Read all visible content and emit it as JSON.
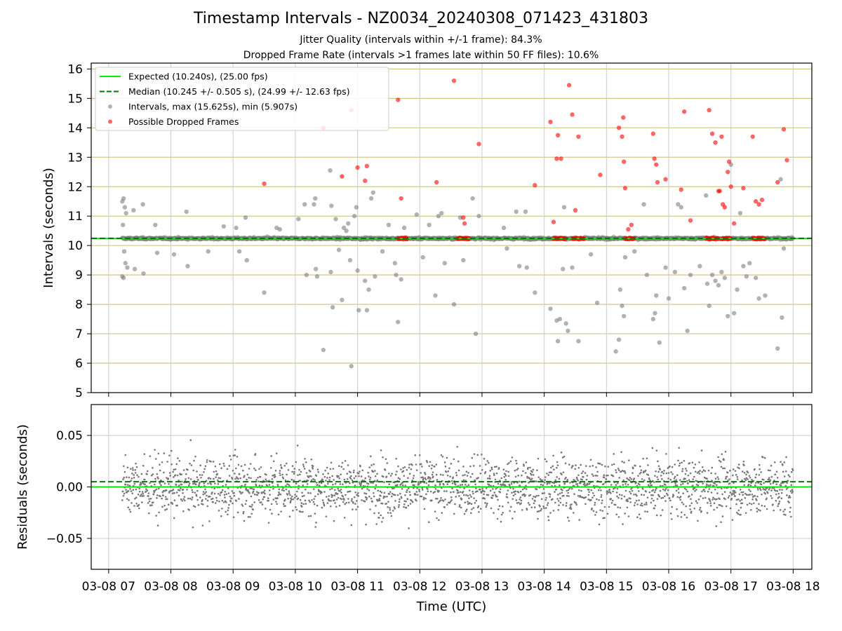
{
  "title": "Timestamp Intervals - NZ0034_20240308_071423_431803",
  "subtitle_lines": [
    "Jitter Quality (intervals within +/-1 frame): 84.3%",
    "Dropped Frame Rate (intervals >1 frames late within 50 FF files): 10.6%"
  ],
  "chart_data": [
    {
      "type": "scatter",
      "panel": "intervals",
      "ylabel": "Intervals (seconds)",
      "ylim": [
        5,
        16.2
      ],
      "yticks": [
        "5",
        "6",
        "7",
        "8",
        "9",
        "10",
        "11",
        "12",
        "13",
        "14",
        "15",
        "16"
      ],
      "grid": true,
      "legend_position": "top-left",
      "reference_lines": [
        {
          "name": "Expected (10.240s), (25.00 fps)",
          "y": 10.24,
          "color": "#00ee00",
          "style": "solid"
        },
        {
          "name": "Median (10.245 +/- 0.505 s), (24.99 +/- 12.63 fps)",
          "y": 10.245,
          "color": "#007700",
          "style": "dashed"
        }
      ],
      "series": [
        {
          "name": "Intervals, max (15.625s), min (5.907s)",
          "color": "#808080"
        },
        {
          "name": "Possible Dropped Frames",
          "color": "#ff0000"
        }
      ],
      "max_interval": 15.625,
      "min_interval": 5.907,
      "outliers": [
        {
          "t": 7.22,
          "y": 11.5
        },
        {
          "t": 7.24,
          "y": 11.6
        },
        {
          "t": 7.26,
          "y": 11.3
        },
        {
          "t": 7.28,
          "y": 11.1
        },
        {
          "t": 7.23,
          "y": 10.7
        },
        {
          "t": 7.25,
          "y": 9.8
        },
        {
          "t": 7.27,
          "y": 9.4
        },
        {
          "t": 7.24,
          "y": 8.9
        },
        {
          "t": 7.22,
          "y": 8.95
        },
        {
          "t": 7.3,
          "y": 9.25
        },
        {
          "t": 7.4,
          "y": 11.2
        },
        {
          "t": 7.42,
          "y": 9.2
        },
        {
          "t": 7.55,
          "y": 11.4
        },
        {
          "t": 7.56,
          "y": 9.05
        },
        {
          "t": 7.75,
          "y": 10.7
        },
        {
          "t": 7.78,
          "y": 9.75
        },
        {
          "t": 8.05,
          "y": 9.7
        },
        {
          "t": 8.25,
          "y": 11.15
        },
        {
          "t": 8.27,
          "y": 9.3
        },
        {
          "t": 8.6,
          "y": 9.8
        },
        {
          "t": 8.85,
          "y": 10.65
        },
        {
          "t": 9.05,
          "y": 10.6
        },
        {
          "t": 9.1,
          "y": 9.8
        },
        {
          "t": 9.2,
          "y": 10.95
        },
        {
          "t": 9.22,
          "y": 9.5
        },
        {
          "t": 9.5,
          "y": 8.4
        },
        {
          "t": 9.55,
          "y": 10.3
        },
        {
          "t": 9.7,
          "y": 10.6
        },
        {
          "t": 9.75,
          "y": 10.55
        },
        {
          "t": 10.05,
          "y": 10.9
        },
        {
          "t": 10.15,
          "y": 11.4
        },
        {
          "t": 10.18,
          "y": 9.0
        },
        {
          "t": 10.3,
          "y": 11.4
        },
        {
          "t": 10.32,
          "y": 11.6
        },
        {
          "t": 10.33,
          "y": 9.2
        },
        {
          "t": 10.35,
          "y": 8.95
        },
        {
          "t": 10.45,
          "y": 6.45
        },
        {
          "t": 10.56,
          "y": 12.55
        },
        {
          "t": 10.58,
          "y": 11.35
        },
        {
          "t": 10.57,
          "y": 9.1
        },
        {
          "t": 10.6,
          "y": 7.9
        },
        {
          "t": 10.65,
          "y": 10.9
        },
        {
          "t": 10.7,
          "y": 9.85
        },
        {
          "t": 10.75,
          "y": 8.15
        },
        {
          "t": 10.78,
          "y": 10.6
        },
        {
          "t": 10.82,
          "y": 10.5
        },
        {
          "t": 10.85,
          "y": 10.75
        },
        {
          "t": 10.88,
          "y": 9.5
        },
        {
          "t": 10.9,
          "y": 5.9
        },
        {
          "t": 10.95,
          "y": 11.0
        },
        {
          "t": 10.98,
          "y": 11.3
        },
        {
          "t": 11.0,
          "y": 9.15
        },
        {
          "t": 11.02,
          "y": 7.8
        },
        {
          "t": 11.05,
          "y": 10.2
        },
        {
          "t": 11.12,
          "y": 8.8
        },
        {
          "t": 11.15,
          "y": 7.8
        },
        {
          "t": 11.18,
          "y": 8.5
        },
        {
          "t": 11.22,
          "y": 11.6
        },
        {
          "t": 11.25,
          "y": 11.8
        },
        {
          "t": 11.28,
          "y": 8.95
        },
        {
          "t": 11.4,
          "y": 9.8
        },
        {
          "t": 11.5,
          "y": 10.7
        },
        {
          "t": 11.6,
          "y": 9.4
        },
        {
          "t": 11.62,
          "y": 9.0
        },
        {
          "t": 11.65,
          "y": 7.4
        },
        {
          "t": 11.7,
          "y": 8.85
        },
        {
          "t": 11.75,
          "y": 10.6
        },
        {
          "t": 11.95,
          "y": 11.05
        },
        {
          "t": 12.05,
          "y": 9.6
        },
        {
          "t": 12.15,
          "y": 10.7
        },
        {
          "t": 12.25,
          "y": 8.3
        },
        {
          "t": 12.3,
          "y": 11.0
        },
        {
          "t": 12.35,
          "y": 11.1
        },
        {
          "t": 12.4,
          "y": 9.4
        },
        {
          "t": 12.55,
          "y": 8.0
        },
        {
          "t": 12.65,
          "y": 10.95
        },
        {
          "t": 12.7,
          "y": 9.5
        },
        {
          "t": 12.85,
          "y": 11.6
        },
        {
          "t": 12.9,
          "y": 7.0
        },
        {
          "t": 12.95,
          "y": 11.0
        },
        {
          "t": 13.35,
          "y": 10.6
        },
        {
          "t": 13.4,
          "y": 9.9
        },
        {
          "t": 13.55,
          "y": 11.15
        },
        {
          "t": 13.6,
          "y": 9.3
        },
        {
          "t": 13.7,
          "y": 11.15
        },
        {
          "t": 13.72,
          "y": 9.25
        },
        {
          "t": 13.85,
          "y": 8.4
        },
        {
          "t": 14.1,
          "y": 7.85
        },
        {
          "t": 14.2,
          "y": 7.45
        },
        {
          "t": 14.22,
          "y": 6.75
        },
        {
          "t": 14.25,
          "y": 7.5
        },
        {
          "t": 14.3,
          "y": 9.2
        },
        {
          "t": 14.32,
          "y": 11.3
        },
        {
          "t": 14.35,
          "y": 7.35
        },
        {
          "t": 14.38,
          "y": 7.1
        },
        {
          "t": 14.45,
          "y": 9.25
        },
        {
          "t": 14.55,
          "y": 6.75
        },
        {
          "t": 14.75,
          "y": 9.7
        },
        {
          "t": 14.85,
          "y": 8.05
        },
        {
          "t": 15.15,
          "y": 6.4
        },
        {
          "t": 15.2,
          "y": 6.8
        },
        {
          "t": 15.22,
          "y": 8.5
        },
        {
          "t": 15.25,
          "y": 7.95
        },
        {
          "t": 15.28,
          "y": 7.6
        },
        {
          "t": 15.3,
          "y": 9.6
        },
        {
          "t": 15.45,
          "y": 9.8
        },
        {
          "t": 15.6,
          "y": 11.4
        },
        {
          "t": 15.65,
          "y": 9.0
        },
        {
          "t": 15.75,
          "y": 7.5
        },
        {
          "t": 15.78,
          "y": 7.7
        },
        {
          "t": 15.8,
          "y": 8.3
        },
        {
          "t": 15.85,
          "y": 6.7
        },
        {
          "t": 15.95,
          "y": 9.25
        },
        {
          "t": 16.0,
          "y": 8.2
        },
        {
          "t": 16.1,
          "y": 9.1
        },
        {
          "t": 16.15,
          "y": 11.4
        },
        {
          "t": 16.2,
          "y": 11.3
        },
        {
          "t": 16.25,
          "y": 8.55
        },
        {
          "t": 16.3,
          "y": 7.1
        },
        {
          "t": 16.35,
          "y": 9.0
        },
        {
          "t": 16.5,
          "y": 9.3
        },
        {
          "t": 16.6,
          "y": 11.7
        },
        {
          "t": 16.62,
          "y": 8.7
        },
        {
          "t": 16.65,
          "y": 7.95
        },
        {
          "t": 16.7,
          "y": 9.0
        },
        {
          "t": 16.75,
          "y": 8.8
        },
        {
          "t": 16.8,
          "y": 8.65
        },
        {
          "t": 16.85,
          "y": 9.1
        },
        {
          "t": 16.9,
          "y": 8.9
        },
        {
          "t": 16.95,
          "y": 7.6
        },
        {
          "t": 17.0,
          "y": 12.75
        },
        {
          "t": 17.05,
          "y": 7.7
        },
        {
          "t": 17.1,
          "y": 8.5
        },
        {
          "t": 17.15,
          "y": 11.1
        },
        {
          "t": 17.2,
          "y": 9.3
        },
        {
          "t": 17.25,
          "y": 8.95
        },
        {
          "t": 17.3,
          "y": 9.4
        },
        {
          "t": 17.4,
          "y": 8.9
        },
        {
          "t": 17.45,
          "y": 8.2
        },
        {
          "t": 17.55,
          "y": 8.3
        },
        {
          "t": 17.75,
          "y": 6.5
        },
        {
          "t": 17.8,
          "y": 12.25
        },
        {
          "t": 17.82,
          "y": 7.55
        },
        {
          "t": 17.85,
          "y": 9.9
        }
      ],
      "dropped_frames": [
        {
          "t": 9.5,
          "y": 12.1
        },
        {
          "t": 10.45,
          "y": 14.0
        },
        {
          "t": 10.75,
          "y": 12.35
        },
        {
          "t": 10.9,
          "y": 14.6
        },
        {
          "t": 11.0,
          "y": 12.65
        },
        {
          "t": 11.12,
          "y": 12.2
        },
        {
          "t": 11.15,
          "y": 12.7
        },
        {
          "t": 11.65,
          "y": 14.95
        },
        {
          "t": 11.7,
          "y": 11.6
        },
        {
          "t": 12.27,
          "y": 12.15
        },
        {
          "t": 12.55,
          "y": 15.6
        },
        {
          "t": 12.7,
          "y": 10.95
        },
        {
          "t": 12.72,
          "y": 10.75
        },
        {
          "t": 12.95,
          "y": 13.45
        },
        {
          "t": 13.85,
          "y": 12.05
        },
        {
          "t": 14.1,
          "y": 14.2
        },
        {
          "t": 14.15,
          "y": 10.8
        },
        {
          "t": 14.2,
          "y": 12.95
        },
        {
          "t": 14.22,
          "y": 13.75
        },
        {
          "t": 14.27,
          "y": 12.95
        },
        {
          "t": 14.4,
          "y": 15.45
        },
        {
          "t": 14.45,
          "y": 14.45
        },
        {
          "t": 14.5,
          "y": 11.2
        },
        {
          "t": 14.55,
          "y": 13.7
        },
        {
          "t": 14.9,
          "y": 12.4
        },
        {
          "t": 15.2,
          "y": 14.0
        },
        {
          "t": 15.25,
          "y": 13.7
        },
        {
          "t": 15.27,
          "y": 14.35
        },
        {
          "t": 15.28,
          "y": 12.85
        },
        {
          "t": 15.3,
          "y": 11.95
        },
        {
          "t": 15.35,
          "y": 10.55
        },
        {
          "t": 15.4,
          "y": 10.7
        },
        {
          "t": 15.75,
          "y": 13.8
        },
        {
          "t": 15.77,
          "y": 12.95
        },
        {
          "t": 15.8,
          "y": 12.75
        },
        {
          "t": 15.82,
          "y": 12.15
        },
        {
          "t": 15.95,
          "y": 12.25
        },
        {
          "t": 16.2,
          "y": 11.9
        },
        {
          "t": 16.25,
          "y": 14.55
        },
        {
          "t": 16.35,
          "y": 10.85
        },
        {
          "t": 16.65,
          "y": 14.6
        },
        {
          "t": 16.7,
          "y": 13.8
        },
        {
          "t": 16.75,
          "y": 13.5
        },
        {
          "t": 16.8,
          "y": 11.85
        },
        {
          "t": 16.82,
          "y": 11.85
        },
        {
          "t": 16.85,
          "y": 13.7
        },
        {
          "t": 16.87,
          "y": 11.4
        },
        {
          "t": 16.9,
          "y": 11.3
        },
        {
          "t": 16.95,
          "y": 12.5
        },
        {
          "t": 16.97,
          "y": 12.85
        },
        {
          "t": 17.0,
          "y": 12.0
        },
        {
          "t": 17.05,
          "y": 10.75
        },
        {
          "t": 17.2,
          "y": 11.95
        },
        {
          "t": 17.35,
          "y": 13.7
        },
        {
          "t": 17.4,
          "y": 11.5
        },
        {
          "t": 17.45,
          "y": 11.4
        },
        {
          "t": 17.5,
          "y": 11.55
        },
        {
          "t": 17.75,
          "y": 12.15
        },
        {
          "t": 17.85,
          "y": 13.95
        },
        {
          "t": 17.9,
          "y": 12.9
        }
      ],
      "dropped_frame_clusters": [
        {
          "t_start": 11.65,
          "t_end": 11.8,
          "y": 10.24
        },
        {
          "t_start": 12.6,
          "t_end": 12.8,
          "y": 10.24
        },
        {
          "t_start": 14.15,
          "t_end": 14.35,
          "y": 10.24
        },
        {
          "t_start": 14.45,
          "t_end": 14.65,
          "y": 10.24
        },
        {
          "t_start": 15.3,
          "t_end": 15.45,
          "y": 10.24
        },
        {
          "t_start": 16.6,
          "t_end": 16.8,
          "y": 10.24
        },
        {
          "t_start": 16.85,
          "t_end": 17.0,
          "y": 10.24
        },
        {
          "t_start": 17.35,
          "t_end": 17.55,
          "y": 10.24
        }
      ],
      "main_band": {
        "t_start": 7.22,
        "t_end": 18.0,
        "y": 10.24
      }
    },
    {
      "type": "scatter",
      "panel": "residuals",
      "ylabel": "Residuals (seconds)",
      "xlabel": "Time (UTC)",
      "ylim": [
        -0.08,
        0.08
      ],
      "yticks": [
        "−0.05",
        "0.00",
        "0.05"
      ],
      "ytick_values": [
        -0.05,
        0,
        0.05
      ],
      "grid": true,
      "reference_lines": [
        {
          "y": 0.0,
          "color": "#00ee00",
          "style": "solid"
        },
        {
          "y": 0.005,
          "color": "#007700",
          "style": "dashed"
        }
      ],
      "point_color": "#777777",
      "residual_spread": 0.02,
      "x_range": [
        7.22,
        18.0
      ]
    }
  ],
  "xaxis": {
    "xlim": [
      6.72,
      18.3
    ],
    "ticks": [
      {
        "t": 7,
        "label": "03-08 07"
      },
      {
        "t": 8,
        "label": "03-08 08"
      },
      {
        "t": 9,
        "label": "03-08 09"
      },
      {
        "t": 10,
        "label": "03-08 10"
      },
      {
        "t": 11,
        "label": "03-08 11"
      },
      {
        "t": 12,
        "label": "03-08 12"
      },
      {
        "t": 13,
        "label": "03-08 13"
      },
      {
        "t": 14,
        "label": "03-08 14"
      },
      {
        "t": 15,
        "label": "03-08 15"
      },
      {
        "t": 16,
        "label": "03-08 16"
      },
      {
        "t": 17,
        "label": "03-08 17"
      },
      {
        "t": 18,
        "label": "03-08 18"
      }
    ]
  }
}
